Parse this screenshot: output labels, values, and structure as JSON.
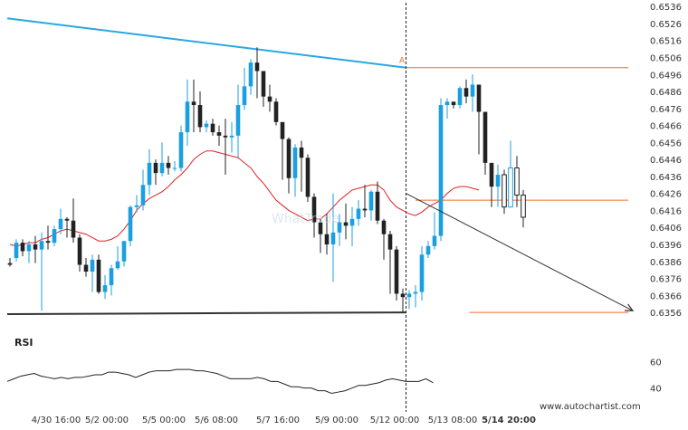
{
  "chart_data": [
    {
      "type": "candlestick",
      "title": "",
      "x_ticks": [
        "4/30 16:00",
        "5/2 00:00",
        "5/5 00:00",
        "5/6 08:00",
        "5/7 16:00",
        "5/9 00:00",
        "5/12 00:00",
        "5/13 08:00",
        "5/14 20:00"
      ],
      "y_ticks": [
        0.6536,
        0.6526,
        0.6516,
        0.6506,
        0.6496,
        0.6486,
        0.6476,
        0.6466,
        0.6456,
        0.6446,
        0.6436,
        0.6426,
        0.6416,
        0.6406,
        0.6396,
        0.6386,
        0.6376,
        0.6366,
        0.6356
      ],
      "ylim": [
        0.6352,
        0.654
      ],
      "grid": false,
      "candles": [
        [
          0.6385,
          0.6384,
          0.6388,
          0.6383
        ],
        [
          0.6388,
          0.6397,
          0.6399,
          0.6386
        ],
        [
          0.6397,
          0.6392,
          0.6399,
          0.6389
        ],
        [
          0.6392,
          0.6396,
          0.6398,
          0.6385
        ],
        [
          0.6396,
          0.6393,
          0.6401,
          0.6385
        ],
        [
          0.6393,
          0.6398,
          0.6403,
          0.6357
        ],
        [
          0.6398,
          0.6397,
          0.6407,
          0.6393
        ],
        [
          0.6397,
          0.6405,
          0.6407,
          0.6395
        ],
        [
          0.6405,
          0.6411,
          0.6417,
          0.6402
        ],
        [
          0.6411,
          0.641,
          0.6412,
          0.64
        ],
        [
          0.641,
          0.64,
          0.6423,
          0.6397
        ],
        [
          0.64,
          0.6384,
          0.6402,
          0.638
        ],
        [
          0.6384,
          0.638,
          0.6388,
          0.6377
        ],
        [
          0.638,
          0.6387,
          0.639,
          0.6368
        ],
        [
          0.6387,
          0.6368,
          0.639,
          0.6367
        ],
        [
          0.6368,
          0.6372,
          0.6378,
          0.6364
        ],
        [
          0.6372,
          0.6382,
          0.6384,
          0.6366
        ],
        [
          0.6382,
          0.6386,
          0.6395,
          0.6381
        ],
        [
          0.6386,
          0.6398,
          0.6398,
          0.6383
        ],
        [
          0.6398,
          0.6418,
          0.6419,
          0.6395
        ],
        [
          0.6418,
          0.6419,
          0.6425,
          0.6415
        ],
        [
          0.6419,
          0.6431,
          0.644,
          0.6416
        ],
        [
          0.6431,
          0.6444,
          0.6452,
          0.6425
        ],
        [
          0.6444,
          0.6438,
          0.6446,
          0.6431
        ],
        [
          0.6438,
          0.6444,
          0.6456,
          0.6436
        ],
        [
          0.6444,
          0.6441,
          0.6448,
          0.6437
        ],
        [
          0.6441,
          0.6441,
          0.6445,
          0.6439
        ],
        [
          0.6441,
          0.6462,
          0.6466,
          0.6439
        ],
        [
          0.6462,
          0.648,
          0.6493,
          0.6454
        ],
        [
          0.648,
          0.6478,
          0.6493,
          0.6462
        ],
        [
          0.6478,
          0.6465,
          0.6486,
          0.6462
        ],
        [
          0.6465,
          0.6467,
          0.6469,
          0.6462
        ],
        [
          0.6467,
          0.6462,
          0.647,
          0.646
        ],
        [
          0.6462,
          0.646,
          0.6466,
          0.6454
        ],
        [
          0.646,
          0.6459,
          0.647,
          0.6437
        ],
        [
          0.6459,
          0.646,
          0.6468,
          0.645
        ],
        [
          0.646,
          0.6478,
          0.649,
          0.6447
        ],
        [
          0.6478,
          0.6489,
          0.65,
          0.6475
        ],
        [
          0.6489,
          0.6503,
          0.6505,
          0.6484
        ],
        [
          0.6503,
          0.6498,
          0.6512,
          0.6482
        ],
        [
          0.6498,
          0.6483,
          0.6488,
          0.6477
        ],
        [
          0.6483,
          0.648,
          0.649,
          0.6474
        ],
        [
          0.648,
          0.6468,
          0.6482,
          0.6466
        ],
        [
          0.6468,
          0.6458,
          0.6462,
          0.6434
        ],
        [
          0.6458,
          0.6435,
          0.6459,
          0.6426
        ],
        [
          0.6435,
          0.6453,
          0.6455,
          0.6424
        ],
        [
          0.6453,
          0.6447,
          0.6457,
          0.6427
        ],
        [
          0.6447,
          0.6424,
          0.6449,
          0.6421
        ],
        [
          0.6424,
          0.6409,
          0.6426,
          0.64
        ],
        [
          0.6409,
          0.6402,
          0.6411,
          0.6391
        ],
        [
          0.6402,
          0.6396,
          0.6414,
          0.639
        ],
        [
          0.6396,
          0.6403,
          0.6426,
          0.6374
        ],
        [
          0.6403,
          0.6409,
          0.6414,
          0.6395
        ],
        [
          0.6409,
          0.6407,
          0.642,
          0.6399
        ],
        [
          0.6407,
          0.6411,
          0.6418,
          0.6395
        ],
        [
          0.6411,
          0.6417,
          0.6422,
          0.6407
        ],
        [
          0.6417,
          0.6416,
          0.6431,
          0.6412
        ],
        [
          0.6416,
          0.6427,
          0.6428,
          0.641
        ],
        [
          0.6427,
          0.641,
          0.6433,
          0.6408
        ],
        [
          0.641,
          0.6402,
          0.6411,
          0.6387
        ],
        [
          0.6402,
          0.6393,
          0.6404,
          0.6367
        ],
        [
          0.6393,
          0.6367,
          0.6395,
          0.6363
        ],
        [
          0.6367,
          0.6365,
          0.637,
          0.6356
        ],
        [
          0.6365,
          0.6367,
          0.6369,
          0.6358
        ],
        [
          0.6367,
          0.6368,
          0.6372,
          0.6359
        ],
        [
          0.6368,
          0.639,
          0.6395,
          0.6363
        ],
        [
          0.639,
          0.6395,
          0.6398,
          0.6388
        ],
        [
          0.6395,
          0.6401,
          0.6415,
          0.6393
        ],
        [
          0.6401,
          0.6478,
          0.6482,
          0.6398
        ],
        [
          0.6478,
          0.648,
          0.6482,
          0.647
        ],
        [
          0.648,
          0.6478,
          0.6479,
          0.6476
        ],
        [
          0.6478,
          0.6488,
          0.6489,
          0.6476
        ],
        [
          0.6488,
          0.6483,
          0.6493,
          0.6479
        ],
        [
          0.6483,
          0.649,
          0.6496,
          0.6474
        ],
        [
          0.649,
          0.6474,
          0.6486,
          0.6449
        ],
        [
          0.6474,
          0.6444,
          0.6448,
          0.6437
        ],
        [
          0.6444,
          0.643,
          0.6441,
          0.6418
        ],
        [
          0.643,
          0.6437,
          0.6443,
          0.6418
        ],
        [
          0.6437,
          0.6418,
          0.644,
          0.6414
        ],
        [
          0.6418,
          0.6441,
          0.6457,
          0.642
        ],
        [
          0.6441,
          0.6425,
          0.6448,
          0.6418
        ],
        [
          0.6425,
          0.6412,
          0.6428,
          0.6406
        ]
      ],
      "sma": [
        0.6396,
        0.6395,
        0.6396,
        0.6397,
        0.6397,
        0.6399,
        0.64,
        0.6402,
        0.6404,
        0.6405,
        0.6404,
        0.6403,
        0.6402,
        0.64,
        0.6398,
        0.6398,
        0.6399,
        0.6401,
        0.6405,
        0.641,
        0.6416,
        0.642,
        0.6423,
        0.6425,
        0.6427,
        0.643,
        0.6434,
        0.6437,
        0.6441,
        0.6446,
        0.6449,
        0.6451,
        0.6451,
        0.645,
        0.6449,
        0.6448,
        0.6447,
        0.6444,
        0.6441,
        0.6436,
        0.6432,
        0.6427,
        0.6422,
        0.6419,
        0.6416,
        0.6414,
        0.6412,
        0.641,
        0.6411,
        0.6411,
        0.6414,
        0.6418,
        0.6422,
        0.6425,
        0.6428,
        0.6429,
        0.643,
        0.6431,
        0.6431,
        0.6428,
        0.6422,
        0.6418,
        0.6416,
        0.6414,
        0.6413,
        0.6415,
        0.6418,
        0.642,
        0.6422,
        0.6426,
        0.6429,
        0.643,
        0.643,
        0.6429,
        0.6428
      ],
      "resistance_line": {
        "start": [
          0,
          0.6529
        ],
        "end": [
          62.5,
          0.65
        ]
      },
      "support_line": {
        "start": [
          0,
          0.6355
        ],
        "end": [
          62.5,
          0.6356
        ]
      },
      "projection_arrow": {
        "start": [
          62.5,
          0.6426
        ],
        "end": [
          77,
          0.6357
        ]
      },
      "level_lines": [
        0.65,
        0.6422,
        0.6356
      ],
      "annotations": [
        "A"
      ]
    },
    {
      "type": "line",
      "title": "RSI",
      "y_ticks": [
        60,
        40
      ],
      "ylim": [
        35,
        65
      ],
      "values": [
        45,
        47,
        49,
        50,
        51,
        49,
        48,
        47,
        48,
        47,
        48,
        48,
        49,
        50,
        50,
        52,
        52,
        51,
        50,
        48,
        50,
        52,
        53,
        53,
        53,
        54,
        54,
        54,
        53,
        53,
        52,
        51,
        49,
        47,
        47,
        47,
        47,
        48,
        47,
        45,
        45,
        43,
        41,
        41,
        40,
        40,
        38,
        38,
        36,
        37,
        38,
        40,
        42,
        42,
        43,
        44,
        46,
        47,
        46,
        45
      ]
    }
  ],
  "price_axis": {
    "labels": [
      "0.6536",
      "0.6526",
      "0.6516",
      "0.6506",
      "0.6496",
      "0.6486",
      "0.6476",
      "0.6466",
      "0.6456",
      "0.6446",
      "0.6436",
      "0.6426",
      "0.6416",
      "0.6406",
      "0.6396",
      "0.6386",
      "0.6376",
      "0.6366",
      "0.6356"
    ]
  },
  "time_axis": {
    "labels": [
      "4/30 16:00",
      "5/2 00:00",
      "5/5 00:00",
      "5/6 08:00",
      "5/7 16:00",
      "5/9 00:00",
      "5/12 00:00",
      "5/13 08:00",
      "5/14 20:00"
    ]
  },
  "rsi_panel": {
    "label": "RSI",
    "ticks": [
      "60",
      "40"
    ]
  },
  "pattern_point_label": "A",
  "watermark_text": "WhatTrade",
  "footer_url": "www.autochartist.com",
  "colors": {
    "bull": "#1a9fe0",
    "bear": "#222222",
    "resistance": "#29a8e0",
    "support": "#333333",
    "sma": "#e02020",
    "level": "#f06a2a",
    "arrow": "#333333"
  }
}
